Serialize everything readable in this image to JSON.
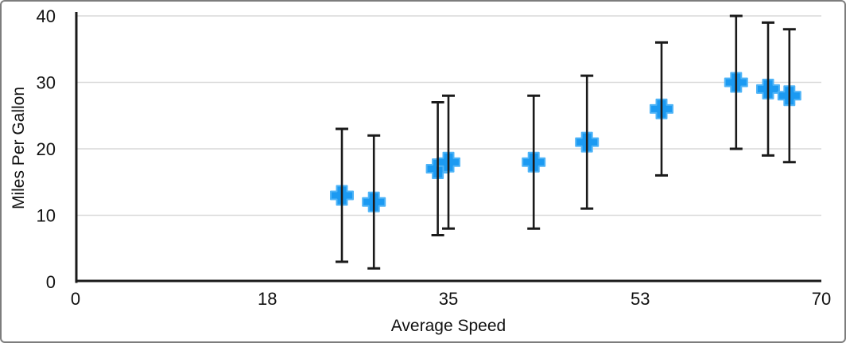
{
  "chart_data": {
    "type": "scatter",
    "title": "",
    "xlabel": "Average Speed",
    "ylabel": "Miles Per Gallon",
    "xlim": [
      0,
      70
    ],
    "ylim": [
      0,
      40
    ],
    "x_tick_labels": [
      "0",
      "18",
      "35",
      "53",
      "70"
    ],
    "x_tick_values": [
      0,
      18,
      35,
      53,
      70
    ],
    "y_tick_labels": [
      "0",
      "10",
      "20",
      "30",
      "40"
    ],
    "y_tick_values": [
      0,
      10,
      20,
      30,
      40
    ],
    "grid": "horizontal-light",
    "legend": "none",
    "series": [
      {
        "name": "Miles Per Gallon",
        "marker": "plus",
        "marker_color": "#1b9af2",
        "marker_outline": "#4fb4f7",
        "error_bar_color": "#1a1a1a",
        "points": [
          {
            "x": 25,
            "y": 13,
            "error_minus": 10,
            "error_plus": 10
          },
          {
            "x": 28,
            "y": 12,
            "error_minus": 10,
            "error_plus": 10
          },
          {
            "x": 34,
            "y": 17,
            "error_minus": 10,
            "error_plus": 10
          },
          {
            "x": 35,
            "y": 18,
            "error_minus": 10,
            "error_plus": 10
          },
          {
            "x": 43,
            "y": 18,
            "error_minus": 10,
            "error_plus": 10
          },
          {
            "x": 48,
            "y": 21,
            "error_minus": 10,
            "error_plus": 10
          },
          {
            "x": 55,
            "y": 26,
            "error_minus": 10,
            "error_plus": 10
          },
          {
            "x": 62,
            "y": 30,
            "error_minus": 10,
            "error_plus": 10
          },
          {
            "x": 65,
            "y": 29,
            "error_minus": 10,
            "error_plus": 10
          },
          {
            "x": 67,
            "y": 28,
            "error_minus": 10,
            "error_plus": 10
          }
        ]
      }
    ],
    "colors": {
      "axis": "#1a1a1a",
      "gridline": "#d9d9d9",
      "background": "#ffffff",
      "frame_border": "#7d7d7d",
      "text": "#111111"
    }
  }
}
